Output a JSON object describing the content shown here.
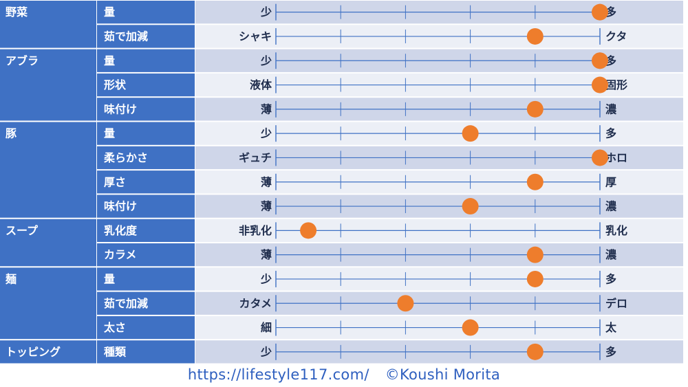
{
  "chart_data": {
    "type": "dot-scale",
    "scale_ticks": 6,
    "categories": [
      {
        "name": "野菜",
        "items": [
          {
            "label": "量",
            "left": "少",
            "right": "多",
            "value": 5
          },
          {
            "label": "茹で加減",
            "left": "シャキ",
            "right": "クタ",
            "value": 4
          }
        ]
      },
      {
        "name": "アブラ",
        "items": [
          {
            "label": "量",
            "left": "少",
            "right": "多",
            "value": 5
          },
          {
            "label": "形状",
            "left": "液体",
            "right": "固形",
            "value": 5
          },
          {
            "label": "味付け",
            "left": "薄",
            "right": "濃",
            "value": 4
          }
        ]
      },
      {
        "name": "豚",
        "items": [
          {
            "label": "量",
            "left": "少",
            "right": "多",
            "value": 3
          },
          {
            "label": "柔らかさ",
            "left": "ギュチ",
            "right": "ホロ",
            "value": 5
          },
          {
            "label": "厚さ",
            "left": "薄",
            "right": "厚",
            "value": 4
          },
          {
            "label": "味付け",
            "left": "薄",
            "right": "濃",
            "value": 3
          }
        ]
      },
      {
        "name": "スープ",
        "items": [
          {
            "label": "乳化度",
            "left": "非乳化",
            "right": "乳化",
            "value": 0.5
          },
          {
            "label": "カラメ",
            "left": "薄",
            "right": "濃",
            "value": 4
          }
        ]
      },
      {
        "name": "麺",
        "items": [
          {
            "label": "量",
            "left": "少",
            "right": "多",
            "value": 4
          },
          {
            "label": "茹で加減",
            "left": "カタメ",
            "right": "デロ",
            "value": 2
          },
          {
            "label": "太さ",
            "left": "細",
            "right": "太",
            "value": 3
          }
        ]
      },
      {
        "name": "トッピング",
        "items": [
          {
            "label": "種類",
            "left": "少",
            "right": "多",
            "value": 4
          }
        ]
      }
    ]
  },
  "footer": {
    "url": "https://lifestyle117.com/",
    "credit": "©Koushi Morita"
  },
  "colors": {
    "header_bg": "#3f71c4",
    "row_light": "#eceff6",
    "row_dark": "#cfd6e9",
    "line": "#3f71c4",
    "dot": "#ee7d2c",
    "label_text": "#1f2d4d",
    "header_text": "#ffffff"
  }
}
